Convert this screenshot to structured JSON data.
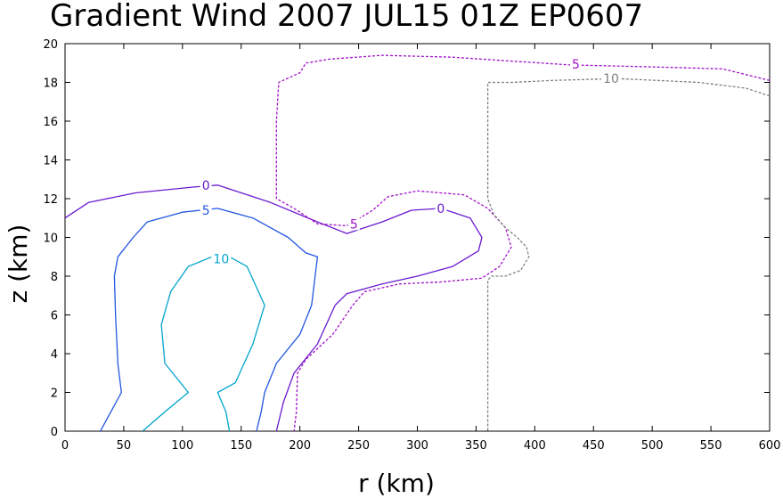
{
  "chart_data": {
    "type": "contour",
    "title": "Gradient Wind 2007 JUL15 01Z  EP0607",
    "xlabel": "r (km)",
    "ylabel": "z (km)",
    "xlim": [
      0,
      600
    ],
    "ylim": [
      0,
      20
    ],
    "xticks": [
      "0",
      "50",
      "100",
      "150",
      "200",
      "250",
      "300",
      "350",
      "400",
      "450",
      "500",
      "550",
      "600"
    ],
    "yticks": [
      "0",
      "2",
      "4",
      "6",
      "8",
      "10",
      "12",
      "14",
      "16",
      "18",
      "20"
    ],
    "series": [
      {
        "name": "10",
        "color": "#00a5cc",
        "dashed": false,
        "label": {
          "text": "10",
          "x": 133,
          "y": 8.9
        },
        "points": [
          [
            66,
            0
          ],
          [
            85,
            1
          ],
          [
            105,
            2
          ],
          [
            85,
            3.5
          ],
          [
            82,
            5.5
          ],
          [
            90,
            7.2
          ],
          [
            105,
            8.5
          ],
          [
            125,
            9
          ],
          [
            140,
            9
          ],
          [
            155,
            8.5
          ],
          [
            170,
            6.5
          ],
          [
            160,
            4.5
          ],
          [
            145,
            2.5
          ],
          [
            130,
            2
          ],
          [
            137,
            1
          ],
          [
            140,
            0
          ]
        ]
      },
      {
        "name": "5",
        "color": "#2156e0",
        "dashed": false,
        "label": {
          "text": "5",
          "x": 120,
          "y": 11.4
        },
        "points": [
          [
            30,
            0
          ],
          [
            48,
            2
          ],
          [
            45,
            3.5
          ],
          [
            43,
            6
          ],
          [
            42,
            8
          ],
          [
            45,
            9
          ],
          [
            58,
            10
          ],
          [
            70,
            10.8
          ],
          [
            100,
            11.3
          ],
          [
            130,
            11.5
          ],
          [
            160,
            11
          ],
          [
            190,
            10
          ],
          [
            205,
            9.2
          ],
          [
            215,
            9
          ],
          [
            210,
            6.5
          ],
          [
            200,
            5
          ],
          [
            180,
            3.5
          ],
          [
            170,
            2
          ],
          [
            167,
            1
          ],
          [
            163,
            0
          ]
        ]
      },
      {
        "name": "0",
        "color": "#6a1ad0",
        "dashed": false,
        "label": {
          "text": "0",
          "x": 120,
          "y": 12.7
        },
        "points": [
          [
            0,
            11
          ],
          [
            20,
            11.8
          ],
          [
            60,
            12.3
          ],
          [
            110,
            12.6
          ],
          [
            130,
            12.7
          ],
          [
            175,
            11.8
          ],
          [
            215,
            10.8
          ],
          [
            240,
            10.2
          ],
          [
            270,
            10.8
          ],
          [
            295,
            11.4
          ],
          [
            320,
            11.5
          ],
          [
            345,
            11
          ],
          [
            355,
            10
          ],
          [
            352,
            9.3
          ],
          [
            330,
            8.5
          ],
          [
            300,
            8
          ],
          [
            270,
            7.6
          ],
          [
            240,
            7.1
          ],
          [
            230,
            6.5
          ],
          [
            215,
            4.5
          ],
          [
            195,
            3
          ],
          [
            186,
            1.5
          ],
          [
            180,
            0
          ]
        ]
      },
      {
        "name": "0-label-right",
        "color": "#6a1ad0",
        "dashed": false,
        "label": {
          "text": "0",
          "x": 320,
          "y": 11.5
        },
        "points": []
      },
      {
        "name": "5",
        "color": "#a012c8",
        "dashed": true,
        "label": {
          "text": "5",
          "x": 435,
          "y": 18.95
        },
        "points": [
          [
            600,
            18.1
          ],
          [
            560,
            18.7
          ],
          [
            500,
            18.8
          ],
          [
            430,
            18.9
          ],
          [
            330,
            19.3
          ],
          [
            270,
            19.4
          ],
          [
            225,
            19.2
          ],
          [
            205,
            19
          ],
          [
            200,
            18.5
          ],
          [
            182,
            18
          ],
          [
            180,
            16
          ],
          [
            180,
            12
          ],
          [
            195,
            11.5
          ],
          [
            215,
            10.7
          ],
          [
            240,
            10.6
          ],
          [
            262,
            11.4
          ],
          [
            275,
            12.1
          ],
          [
            300,
            12.4
          ],
          [
            340,
            12.2
          ],
          [
            360,
            11.5
          ],
          [
            375,
            10.5
          ],
          [
            380,
            9.5
          ],
          [
            370,
            8.5
          ],
          [
            355,
            7.9
          ],
          [
            320,
            7.7
          ],
          [
            285,
            7.6
          ],
          [
            255,
            7.2
          ],
          [
            245,
            6.5
          ],
          [
            228,
            5
          ],
          [
            205,
            3.7
          ],
          [
            198,
            3
          ],
          [
            197,
            1
          ],
          [
            195,
            0
          ]
        ]
      },
      {
        "name": "5-label-inner",
        "color": "#a012c8",
        "dashed": true,
        "label": {
          "text": "5",
          "x": 246,
          "y": 10.7
        },
        "points": []
      },
      {
        "name": "10",
        "color": "#808080",
        "dashed": true,
        "label": {
          "text": "10",
          "x": 465,
          "y": 18.2
        },
        "points": [
          [
            600,
            17.3
          ],
          [
            580,
            17.7
          ],
          [
            540,
            18.0
          ],
          [
            470,
            18.2
          ],
          [
            415,
            18.1
          ],
          [
            380,
            18.0
          ],
          [
            360,
            18.0
          ],
          [
            360,
            12
          ],
          [
            365,
            11.2
          ],
          [
            375,
            10.5
          ],
          [
            385,
            10
          ],
          [
            393,
            9.5
          ],
          [
            395,
            9
          ],
          [
            388,
            8.3
          ],
          [
            375,
            8
          ],
          [
            363,
            8
          ],
          [
            360,
            7.8
          ],
          [
            360,
            0
          ]
        ]
      }
    ]
  }
}
